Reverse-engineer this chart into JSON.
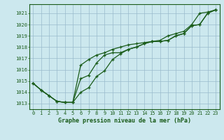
{
  "title": "Graphe pression niveau de la mer (hPa)",
  "bg_color": "#cce8ee",
  "grid_color": "#99bbcc",
  "line_color": "#1a5c1a",
  "x_ticks": [
    0,
    1,
    2,
    3,
    4,
    5,
    6,
    7,
    8,
    9,
    10,
    11,
    12,
    13,
    14,
    15,
    16,
    17,
    18,
    19,
    20,
    21,
    22,
    23
  ],
  "ylim": [
    1012.5,
    1021.8
  ],
  "yticks": [
    1013,
    1014,
    1015,
    1016,
    1017,
    1018,
    1019,
    1020,
    1021
  ],
  "series1": [
    1014.8,
    1014.2,
    1013.7,
    1013.2,
    1013.1,
    1013.1,
    1016.4,
    1016.9,
    1017.3,
    1017.5,
    1017.8,
    1018.0,
    1018.2,
    1018.3,
    1018.4,
    1018.5,
    1018.6,
    1019.0,
    1019.2,
    1019.4,
    1020.0,
    1021.0,
    1021.1,
    1021.3
  ],
  "series2": [
    1014.8,
    1014.2,
    1013.7,
    1013.2,
    1013.1,
    1013.1,
    1015.2,
    1015.5,
    1016.6,
    1017.3,
    1017.5,
    1017.5,
    1017.8,
    1018.0,
    1018.3,
    1018.5,
    1018.5,
    1018.6,
    1019.0,
    1019.2,
    1019.9,
    1020.0,
    1021.0,
    1021.3
  ],
  "series3": [
    1014.8,
    1014.2,
    1013.7,
    1013.2,
    1013.1,
    1013.1,
    1014.0,
    1014.4,
    1015.4,
    1015.9,
    1016.9,
    1017.4,
    1017.8,
    1018.0,
    1018.3,
    1018.5,
    1018.5,
    1018.6,
    1019.0,
    1019.2,
    1019.9,
    1020.0,
    1021.0,
    1021.3
  ],
  "tick_fontsize": 5.0,
  "label_fontsize": 6.0,
  "linewidth": 0.9,
  "markersize": 3.5,
  "figsize": [
    3.2,
    2.0
  ],
  "dpi": 100
}
